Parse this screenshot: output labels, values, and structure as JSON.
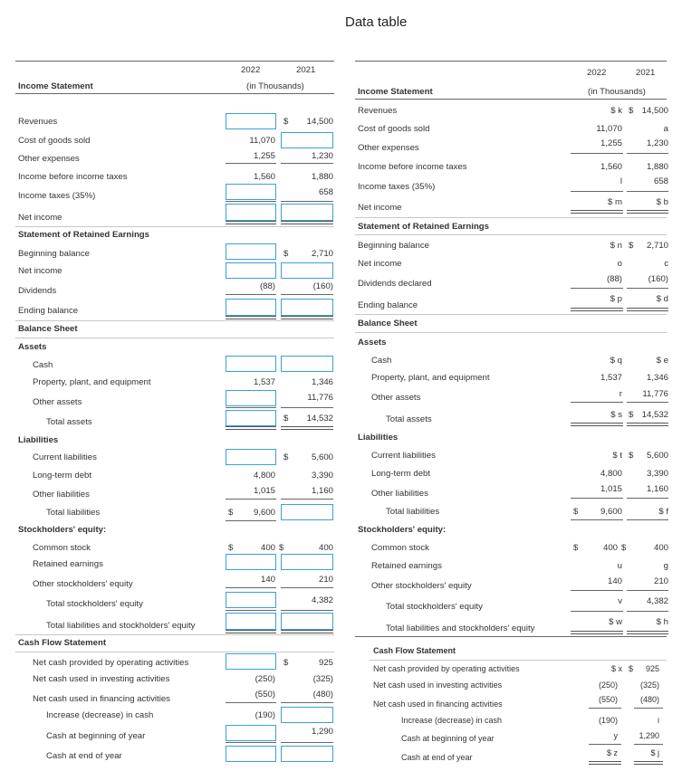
{
  "page_title": "Data table",
  "left": {
    "col_years": [
      "2022",
      "2021"
    ],
    "col_unit": "(in Thousands)",
    "income_statement": {
      "heading": "Income Statement",
      "revenues": {
        "label": "Revenues",
        "cur_sym": "$",
        "prior": "14,500"
      },
      "cogs": {
        "label": "Cost of goods sold",
        "current": "11,070"
      },
      "other_expenses": {
        "label": "Other expenses",
        "current": "1,255",
        "prior": "1,230"
      },
      "income_before_tax": {
        "label": "Income before income taxes",
        "current": "1,560",
        "prior": "1,880"
      },
      "income_tax": {
        "label": "Income taxes (35%)",
        "prior": "658"
      },
      "net_income": {
        "label": "Net income"
      }
    },
    "retained_earnings": {
      "heading": "Statement of Retained Earnings",
      "beginning": {
        "label": "Beginning balance",
        "cur_sym": "$",
        "prior": "2,710"
      },
      "net_income": {
        "label": "Net income"
      },
      "dividends": {
        "label": "Dividends",
        "current": "(88)",
        "prior": "(160)"
      },
      "ending": {
        "label": "Ending balance"
      }
    },
    "balance_sheet": {
      "heading": "Balance Sheet",
      "assets_heading": "Assets",
      "cash": {
        "label": "Cash"
      },
      "ppe": {
        "label": "Property, plant, and equipment",
        "current": "1,537",
        "prior": "1,346"
      },
      "other_assets": {
        "label": "Other assets",
        "prior": "11,776"
      },
      "total_assets": {
        "label": "Total assets",
        "cur_sym": "$",
        "prior": "14,532"
      },
      "liabilities_heading": "Liabilities",
      "current_liabilities": {
        "label": "Current liabilities",
        "cur_sym": "$",
        "prior": "5,600"
      },
      "long_term_debt": {
        "label": "Long-term debt",
        "current": "4,800",
        "prior": "3,390"
      },
      "other_liabilities": {
        "label": "Other liabilities",
        "current": "1,015",
        "prior": "1,160"
      },
      "total_liabilities": {
        "label": "Total liabilities",
        "sym": "$",
        "current": "9,600"
      },
      "equity_heading": "Stockholders' equity:",
      "common_stock": {
        "label": "Common stock",
        "sym": "$",
        "current": "400",
        "cur_sym": "$",
        "prior": "400"
      },
      "retained_earnings": {
        "label": "Retained earnings"
      },
      "other_equity": {
        "label": "Other stockholders' equity",
        "current": "140",
        "prior": "210"
      },
      "total_equity": {
        "label": "Total stockholders' equity",
        "prior": "4,382"
      },
      "total_liab_equity": {
        "label": "Total liabilities and stockholders' equity"
      }
    },
    "cash_flow": {
      "heading": "Cash Flow Statement",
      "operating": {
        "label": "Net cash provided by operating activities",
        "cur_sym": "$",
        "prior": "925"
      },
      "investing": {
        "label": "Net cash used in investing activities",
        "current": "(250)",
        "prior": "(325)"
      },
      "financing": {
        "label": "Net cash used in financing activities",
        "current": "(550)",
        "prior": "(480)"
      },
      "change": {
        "label": "Increase (decrease) in cash",
        "current": "(190)"
      },
      "beginning": {
        "label": "Cash at beginning of year",
        "prior": "1,290"
      },
      "ending": {
        "label": "Cash at end of year"
      }
    }
  },
  "right": {
    "col_years": [
      "2022",
      "2021"
    ],
    "col_unit": "(in Thousands)",
    "income_statement": {
      "heading": "Income Statement",
      "revenues": {
        "label": "Revenues",
        "current": "$ k",
        "sym": "$",
        "prior": "14,500"
      },
      "cogs": {
        "label": "Cost of goods sold",
        "current": "11,070",
        "prior": "a"
      },
      "other_expenses": {
        "label": "Other expenses",
        "current": "1,255",
        "prior": "1,230"
      },
      "income_before_tax": {
        "label": "Income before income taxes",
        "current": "1,560",
        "prior": "1,880"
      },
      "income_tax": {
        "label": "Income taxes (35%)",
        "current": "l",
        "prior": "658"
      },
      "net_income": {
        "label": "Net income",
        "current": "$ m",
        "prior": "$ b"
      }
    },
    "retained_earnings": {
      "heading": "Statement of Retained Earnings",
      "beginning": {
        "label": "Beginning balance",
        "current": "$ n",
        "sym": "$",
        "prior": "2,710"
      },
      "net_income": {
        "label": "Net income",
        "current": "o",
        "prior": "c"
      },
      "dividends": {
        "label": "Dividends declared",
        "current": "(88)",
        "prior": "(160)"
      },
      "ending": {
        "label": "Ending balance",
        "current": "$ p",
        "prior": "$ d"
      }
    },
    "balance_sheet": {
      "heading": "Balance Sheet",
      "assets_heading": "Assets",
      "cash": {
        "label": "Cash",
        "current": "$ q",
        "prior": "$ e"
      },
      "ppe": {
        "label": "Property, plant, and equipment",
        "current": "1,537",
        "prior": "1,346"
      },
      "other_assets": {
        "label": "Other assets",
        "current": "r",
        "prior": "11,776"
      },
      "total_assets": {
        "label": "Total assets",
        "current": "$ s",
        "sym": "$",
        "prior": "14,532"
      },
      "liabilities_heading": "Liabilities",
      "current_liabilities": {
        "label": "Current liabilities",
        "current": "$ t",
        "sym": "$",
        "prior": "5,600"
      },
      "long_term_debt": {
        "label": "Long-term debt",
        "current": "4,800",
        "prior": "3,390"
      },
      "other_liabilities": {
        "label": "Other liabilities",
        "current": "1,015",
        "prior": "1,160"
      },
      "total_liabilities": {
        "label": "Total liabilities",
        "sym": "$",
        "current": "9,600",
        "prior": "$ f"
      },
      "equity_heading": "Stockholders' equity:",
      "common_stock": {
        "label": "Common stock",
        "sym": "$",
        "current": "400",
        "cur_sym": "$",
        "prior": "400"
      },
      "retained_earnings": {
        "label": "Retained earnings",
        "current": "u",
        "prior": "g"
      },
      "other_equity": {
        "label": "Other stockholders' equity",
        "current": "140",
        "prior": "210"
      },
      "total_equity": {
        "label": "Total stockholders' equity",
        "current": "v",
        "prior": "4,382"
      },
      "total_liab_equity": {
        "label": "Total liabilities and stockholders' equity",
        "current": "$ w",
        "prior": "$ h"
      }
    },
    "cash_flow": {
      "heading": "Cash Flow Statement",
      "operating": {
        "label": "Net cash provided by operating activities",
        "current": "$ x",
        "sym": "$",
        "prior": "925"
      },
      "investing": {
        "label": "Net cash used in investing activities",
        "current": "(250)",
        "prior": "(325)"
      },
      "financing": {
        "label": "Net cash used in financing activities",
        "current": "(550)",
        "prior": "(480)"
      },
      "change": {
        "label": "Increase (decrease) in cash",
        "current": "(190)",
        "prior": "i"
      },
      "beginning": {
        "label": "Cash at beginning of year",
        "current": "y",
        "prior": "1,290"
      },
      "ending": {
        "label": "Cash at end of year",
        "current": "$ z",
        "prior": "$ j"
      }
    }
  }
}
